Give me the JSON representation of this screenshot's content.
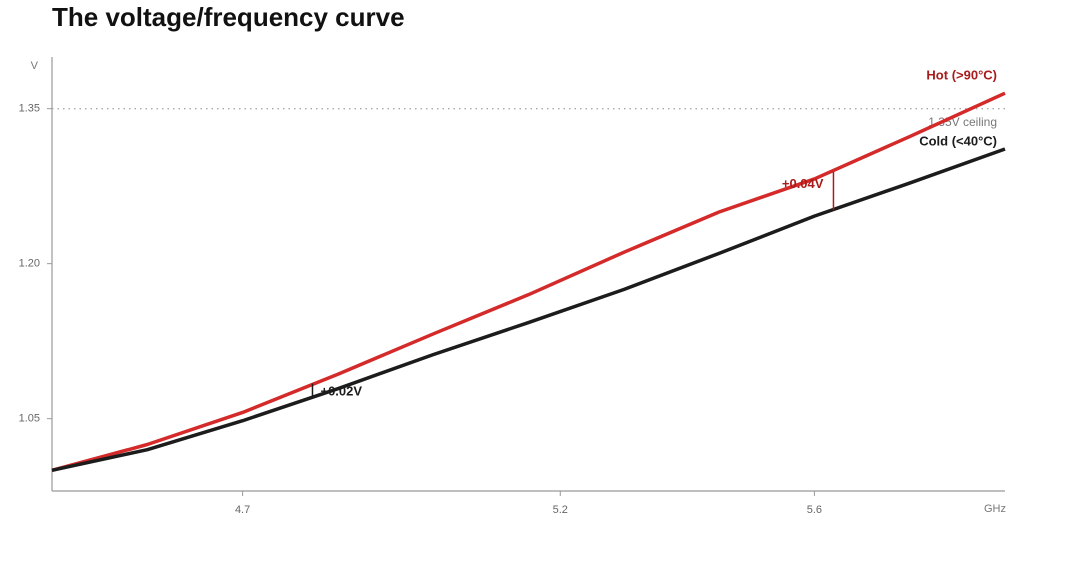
{
  "chart_data": {
    "type": "line",
    "title": "The voltage/frequency curve",
    "y_axis_label": "V",
    "x_axis_label": "GHz",
    "x": [
      4.4,
      4.55,
      4.7,
      4.85,
      5.0,
      5.15,
      5.3,
      5.45,
      5.6,
      5.75,
      5.9
    ],
    "series": [
      {
        "name": "Hot (>90°C)",
        "color": "#d42a2a",
        "label_color": "#a81c1c",
        "values": [
          1.0,
          1.025,
          1.056,
          1.093,
          1.132,
          1.17,
          1.211,
          1.25,
          1.282,
          1.323,
          1.365
        ]
      },
      {
        "name": "Cold (<40°C)",
        "color": "#1c1c1c",
        "label_color": "#1c1c1c",
        "values": [
          1.0,
          1.02,
          1.048,
          1.079,
          1.112,
          1.143,
          1.175,
          1.21,
          1.246,
          1.278,
          1.311
        ]
      }
    ],
    "xlim": [
      4.4,
      5.9
    ],
    "xticks": [
      4.7,
      5.2,
      5.6
    ],
    "ylim": [
      0.98,
      1.4
    ],
    "yticks": [
      1.05,
      {
        "value": 1.2,
        "label": "1.20"
      },
      1.35
    ],
    "reference_line": {
      "value": 1.35,
      "label": "1.35V ceiling"
    },
    "annotations": [
      {
        "text": "+0.02V",
        "x": 4.81,
        "y_low": 1.071,
        "y_high": 1.084,
        "color": "#1c1c1c"
      },
      {
        "text": "+0.04V",
        "x": 5.63,
        "y_low": 1.252,
        "y_high": 1.289,
        "color": "#a81c1c"
      }
    ]
  }
}
